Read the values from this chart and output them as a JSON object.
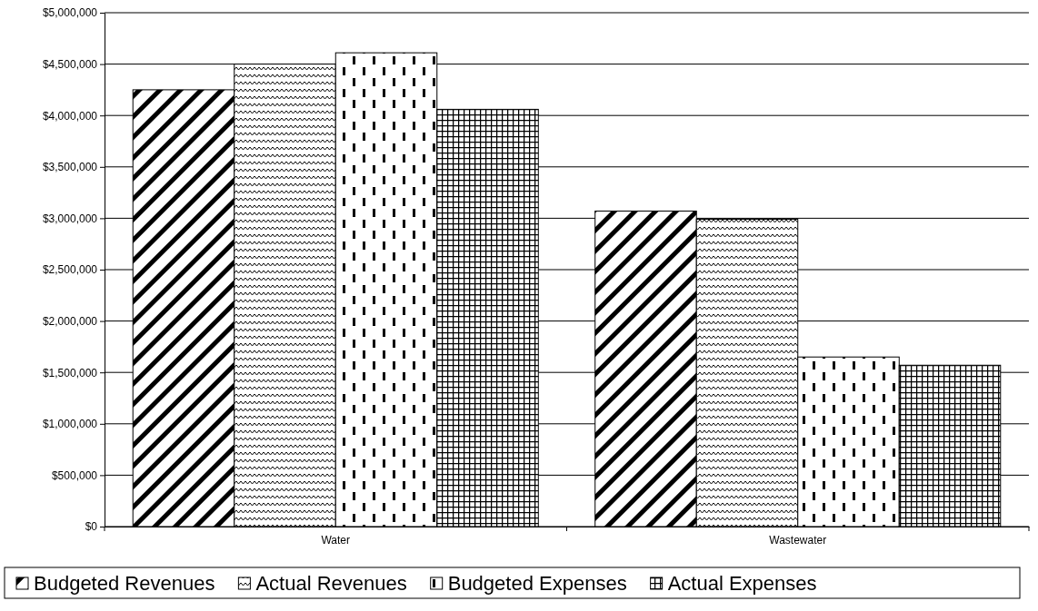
{
  "chart_data": {
    "type": "bar",
    "categories": [
      "Water",
      "Wastewater"
    ],
    "series": [
      {
        "name": "Budgeted Revenues",
        "color": "#000000",
        "values": [
          4250000,
          3070000
        ]
      },
      {
        "name": "Actual Revenues",
        "color": "#000000",
        "values": [
          4500000,
          2990000
        ]
      },
      {
        "name": "Budgeted Expenses",
        "color": "#000000",
        "values": [
          4610000,
          1650000
        ]
      },
      {
        "name": "Actual Expenses",
        "color": "#000000",
        "values": [
          4060000,
          1570000
        ]
      }
    ],
    "ylim": [
      0,
      5000000
    ],
    "yticks": [
      {
        "value": 0,
        "label": "$0"
      },
      {
        "value": 500000,
        "label": "$500,000"
      },
      {
        "value": 1000000,
        "label": "$1,000,000"
      },
      {
        "value": 1500000,
        "label": "$1,500,000"
      },
      {
        "value": 2000000,
        "label": "$2,000,000"
      },
      {
        "value": 2500000,
        "label": "$2,500,000"
      },
      {
        "value": 3000000,
        "label": "$3,000,000"
      },
      {
        "value": 3500000,
        "label": "$3,500,000"
      },
      {
        "value": 4000000,
        "label": "$4,000,000"
      },
      {
        "value": 4500000,
        "label": "$4,500,000"
      },
      {
        "value": 5000000,
        "label": "$5,000,000"
      }
    ],
    "grid": "y",
    "legend": "bottom"
  }
}
